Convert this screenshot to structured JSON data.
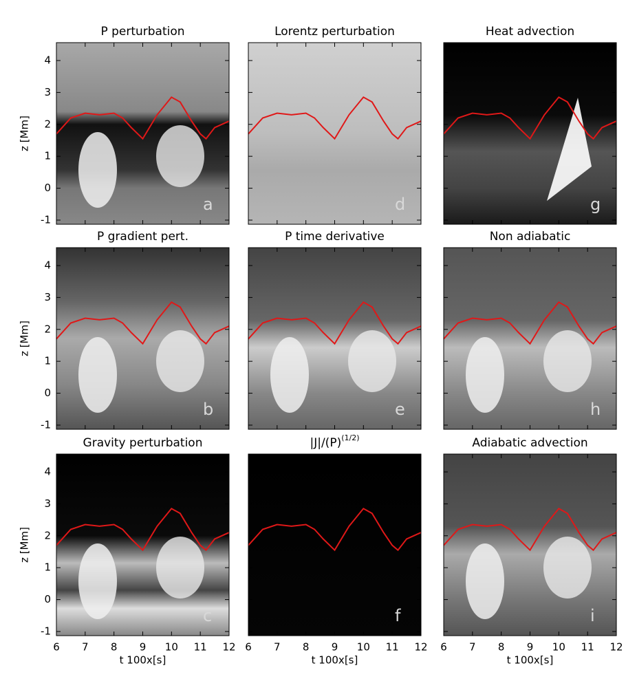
{
  "chart_data": [
    {
      "type": "image",
      "title": "P perturbation",
      "panel_label": "a",
      "ylabel": "z [Mm]",
      "xlim": [
        6,
        12
      ],
      "ylim": [
        -1.13,
        4.56
      ],
      "xticks": [
        6,
        7,
        8,
        9,
        10,
        11,
        12
      ],
      "yticks": [
        -1,
        0,
        1,
        2,
        3,
        4
      ],
      "line_color": "#e01818",
      "x": [
        6,
        6.5,
        7,
        7.5,
        8,
        8.3,
        8.6,
        9,
        9.5,
        10,
        10.3,
        10.7,
        11,
        11.2,
        11.5,
        12
      ],
      "values": [
        1.7,
        2.2,
        2.35,
        2.3,
        2.35,
        2.2,
        1.9,
        1.55,
        2.3,
        2.85,
        2.7,
        2.1,
        1.7,
        1.55,
        1.9,
        2.1
      ]
    },
    {
      "type": "image",
      "title": "Lorentz perturbation",
      "panel_label": "d",
      "xlim": [
        6,
        12
      ],
      "ylim": [
        -1.13,
        4.56
      ],
      "xticks": [
        6,
        7,
        8,
        9,
        10,
        11,
        12
      ],
      "yticks": [
        -1,
        0,
        1,
        2,
        3,
        4
      ],
      "line_color": "#e01818",
      "x": [
        6,
        6.5,
        7,
        7.5,
        8,
        8.3,
        8.6,
        9,
        9.5,
        10,
        10.3,
        10.7,
        11,
        11.2,
        11.5,
        12
      ],
      "values": [
        1.7,
        2.2,
        2.35,
        2.3,
        2.35,
        2.2,
        1.9,
        1.55,
        2.3,
        2.85,
        2.7,
        2.1,
        1.7,
        1.55,
        1.9,
        2.1
      ]
    },
    {
      "type": "image",
      "title": "Heat advection",
      "panel_label": "g",
      "xlim": [
        6,
        12
      ],
      "ylim": [
        -1.13,
        4.56
      ],
      "xticks": [
        6,
        7,
        8,
        9,
        10,
        11,
        12
      ],
      "yticks": [
        -1,
        0,
        1,
        2,
        3,
        4
      ],
      "line_color": "#e01818",
      "x": [
        6,
        6.5,
        7,
        7.5,
        8,
        8.3,
        8.6,
        9,
        9.5,
        10,
        10.3,
        10.7,
        11,
        11.2,
        11.5,
        12
      ],
      "values": [
        1.7,
        2.2,
        2.35,
        2.3,
        2.35,
        2.2,
        1.9,
        1.55,
        2.3,
        2.85,
        2.7,
        2.1,
        1.7,
        1.55,
        1.9,
        2.1
      ]
    },
    {
      "type": "image",
      "title": "P gradient pert.",
      "panel_label": "b",
      "ylabel": "z [Mm]",
      "xlim": [
        6,
        12
      ],
      "ylim": [
        -1.13,
        4.56
      ],
      "xticks": [
        6,
        7,
        8,
        9,
        10,
        11,
        12
      ],
      "yticks": [
        -1,
        0,
        1,
        2,
        3,
        4
      ],
      "line_color": "#e01818",
      "x": [
        6,
        6.5,
        7,
        7.5,
        8,
        8.3,
        8.6,
        9,
        9.5,
        10,
        10.3,
        10.7,
        11,
        11.2,
        11.5,
        12
      ],
      "values": [
        1.7,
        2.2,
        2.35,
        2.3,
        2.35,
        2.2,
        1.9,
        1.55,
        2.3,
        2.85,
        2.7,
        2.1,
        1.7,
        1.55,
        1.9,
        2.1
      ]
    },
    {
      "type": "image",
      "title": "P time derivative",
      "panel_label": "e",
      "xlim": [
        6,
        12
      ],
      "ylim": [
        -1.13,
        4.56
      ],
      "xticks": [
        6,
        7,
        8,
        9,
        10,
        11,
        12
      ],
      "yticks": [
        -1,
        0,
        1,
        2,
        3,
        4
      ],
      "line_color": "#e01818",
      "x": [
        6,
        6.5,
        7,
        7.5,
        8,
        8.3,
        8.6,
        9,
        9.5,
        10,
        10.3,
        10.7,
        11,
        11.2,
        11.5,
        12
      ],
      "values": [
        1.7,
        2.2,
        2.35,
        2.3,
        2.35,
        2.2,
        1.9,
        1.55,
        2.3,
        2.85,
        2.7,
        2.1,
        1.7,
        1.55,
        1.9,
        2.1
      ]
    },
    {
      "type": "image",
      "title": "Non adiabatic",
      "panel_label": "h",
      "xlim": [
        6,
        12
      ],
      "ylim": [
        -1.13,
        4.56
      ],
      "xticks": [
        6,
        7,
        8,
        9,
        10,
        11,
        12
      ],
      "yticks": [
        -1,
        0,
        1,
        2,
        3,
        4
      ],
      "line_color": "#e01818",
      "x": [
        6,
        6.5,
        7,
        7.5,
        8,
        8.3,
        8.6,
        9,
        9.5,
        10,
        10.3,
        10.7,
        11,
        11.2,
        11.5,
        12
      ],
      "values": [
        1.7,
        2.2,
        2.35,
        2.3,
        2.35,
        2.2,
        1.9,
        1.55,
        2.3,
        2.85,
        2.7,
        2.1,
        1.7,
        1.55,
        1.9,
        2.1
      ]
    },
    {
      "type": "image",
      "title": "Gravity perturbation",
      "panel_label": "c",
      "ylabel": "z [Mm]",
      "xlabel": "t 100x[s]",
      "xlim": [
        6,
        12
      ],
      "ylim": [
        -1.13,
        4.56
      ],
      "xticks": [
        6,
        7,
        8,
        9,
        10,
        11,
        12
      ],
      "yticks": [
        -1,
        0,
        1,
        2,
        3,
        4
      ],
      "line_color": "#e01818",
      "x": [
        6,
        6.5,
        7,
        7.5,
        8,
        8.3,
        8.6,
        9,
        9.5,
        10,
        10.3,
        10.7,
        11,
        11.2,
        11.5,
        12
      ],
      "values": [
        1.7,
        2.2,
        2.35,
        2.3,
        2.35,
        2.2,
        1.9,
        1.55,
        2.3,
        2.85,
        2.7,
        2.1,
        1.7,
        1.55,
        1.9,
        2.1
      ]
    },
    {
      "type": "image",
      "title": "|J|/(P)",
      "title_superscript": "(1/2)",
      "panel_label": "f",
      "xlabel": "t 100x[s]",
      "xlim": [
        6,
        12
      ],
      "ylim": [
        -1.13,
        4.56
      ],
      "xticks": [
        6,
        7,
        8,
        9,
        10,
        11,
        12
      ],
      "yticks": [
        -1,
        0,
        1,
        2,
        3,
        4
      ],
      "line_color": "#e01818",
      "x": [
        6,
        6.5,
        7,
        7.5,
        8,
        8.3,
        8.6,
        9,
        9.5,
        10,
        10.3,
        10.7,
        11,
        11.2,
        11.5,
        12
      ],
      "values": [
        1.7,
        2.2,
        2.35,
        2.3,
        2.35,
        2.2,
        1.9,
        1.55,
        2.3,
        2.85,
        2.7,
        2.1,
        1.7,
        1.55,
        1.9,
        2.1
      ]
    },
    {
      "type": "image",
      "title": "Adiabatic advection",
      "panel_label": "i",
      "xlabel": "t 100x[s]",
      "xlim": [
        6,
        12
      ],
      "ylim": [
        -1.13,
        4.56
      ],
      "xticks": [
        6,
        7,
        8,
        9,
        10,
        11,
        12
      ],
      "yticks": [
        -1,
        0,
        1,
        2,
        3,
        4
      ],
      "line_color": "#e01818",
      "x": [
        6,
        6.5,
        7,
        7.5,
        8,
        8.3,
        8.6,
        9,
        9.5,
        10,
        10.3,
        10.7,
        11,
        11.2,
        11.5,
        12
      ],
      "values": [
        1.7,
        2.2,
        2.35,
        2.3,
        2.35,
        2.2,
        1.9,
        1.55,
        2.3,
        2.85,
        2.7,
        2.1,
        1.7,
        1.55,
        1.9,
        2.1
      ]
    }
  ]
}
